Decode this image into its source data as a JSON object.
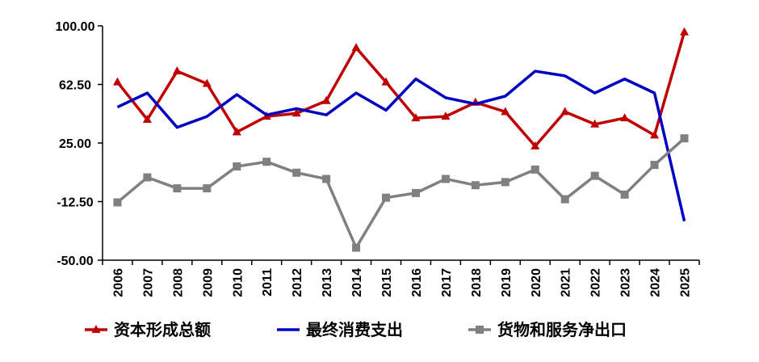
{
  "chart_data": {
    "type": "line",
    "title": "",
    "xlabel": "",
    "ylabel": "",
    "categories": [
      "2006",
      "2007",
      "2008",
      "2009",
      "2010",
      "2011",
      "2012",
      "2013",
      "2014",
      "2015",
      "2016",
      "2017",
      "2018",
      "2019",
      "2020",
      "2021",
      "2022",
      "2023",
      "2024",
      "2025"
    ],
    "ylim": [
      -50,
      100
    ],
    "yticks": [
      "100.00",
      "62.50",
      "25.00",
      "-12.50",
      "-50.00"
    ],
    "ytick_values": [
      100,
      62.5,
      25,
      -12.5,
      -50
    ],
    "grid": false,
    "legend_position": "bottom",
    "series": [
      {
        "name": "资本形成总额",
        "color": "#c00000",
        "marker": "triangle",
        "values": [
          64.0,
          40.0,
          71.0,
          63.0,
          32.0,
          42.0,
          44.0,
          52.0,
          86.0,
          64.0,
          41.0,
          42.0,
          51.0,
          45.0,
          23.0,
          45.0,
          37.0,
          41.0,
          30.0,
          96.0
        ]
      },
      {
        "name": "最终消费支出",
        "color": "#0000c0",
        "marker": "none",
        "values": [
          48.0,
          57.0,
          35.0,
          42.0,
          56.0,
          43.0,
          47.0,
          43.0,
          57.0,
          46.0,
          66.0,
          54.0,
          50.0,
          55.0,
          71.0,
          68.0,
          57.0,
          66.0,
          57.0,
          -25.0
        ]
      },
      {
        "name": "货物和服务净出口",
        "color": "#808080",
        "marker": "square",
        "values": [
          -13.0,
          3.0,
          -4.0,
          -4.0,
          10.0,
          13.0,
          6.0,
          2.0,
          -42.0,
          -10.0,
          -7.0,
          2.0,
          -2.0,
          0.0,
          8.0,
          -11.0,
          4.0,
          -8.0,
          11.0,
          28.0
        ]
      }
    ]
  }
}
